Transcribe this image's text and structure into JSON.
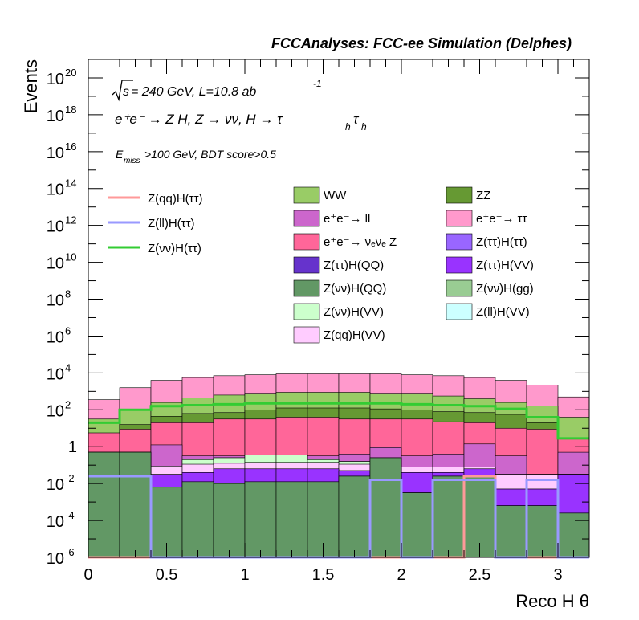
{
  "chart_data": {
    "type": "area",
    "title": "FCCAnalyses: FCC-ee Simulation (Delphes)",
    "xlabel": "Reco H θ",
    "ylabel": "Events",
    "xlim": [
      0,
      3.2
    ],
    "ylim_log10": [
      -6,
      21
    ],
    "log_y": true,
    "grid": false,
    "x_ticks": [
      "0",
      "0.5",
      "1",
      "1.5",
      "2",
      "2.5",
      "3"
    ],
    "y_ticks": [
      {
        "base": "10",
        "exp": "-6"
      },
      {
        "base": "10",
        "exp": "-4"
      },
      {
        "base": "10",
        "exp": "-2"
      },
      {
        "base": "1",
        "exp": ""
      },
      {
        "base": "10",
        "exp": "2"
      },
      {
        "base": "10",
        "exp": "4"
      },
      {
        "base": "10",
        "exp": "6"
      },
      {
        "base": "10",
        "exp": "8"
      },
      {
        "base": "10",
        "exp": "10"
      },
      {
        "base": "10",
        "exp": "12"
      },
      {
        "base": "10",
        "exp": "14"
      },
      {
        "base": "10",
        "exp": "16"
      },
      {
        "base": "10",
        "exp": "18"
      },
      {
        "base": "10",
        "exp": "20"
      }
    ],
    "annotations": {
      "sqrt_s": "s",
      "energy_lumi": " = 240 GeV, L=10.8 ab",
      "lumi_exp": "-1",
      "process": "e⁺e⁻ → Z H, Z → νν, H → τ",
      "process_sub1": "h",
      "process_tau2": "τ",
      "process_sub2": "h",
      "cut_E": "E",
      "cut_sub": "miss",
      "cut_rest": ">100 GeV, BDT score>0.5"
    },
    "bin_edges": [
      0,
      0.2,
      0.4,
      0.6,
      0.8,
      1.0,
      1.2,
      1.4,
      1.6,
      1.8,
      2.0,
      2.2,
      2.4,
      2.6,
      2.8,
      3.0,
      3.2
    ],
    "stack_log10_tops": [
      {
        "name": "Z(νν)H(QQ)",
        "color": "#629865",
        "values": [
          -0.3,
          -0.3,
          -2.2,
          -1.9,
          -2.0,
          -1.9,
          -1.9,
          -1.9,
          -1.6,
          -0.6,
          -2.5,
          -1.6,
          -1.6,
          -3.2,
          -3.2,
          -3.6
        ]
      },
      {
        "name": "Z(νν)H(gg)",
        "color": "#99cc93",
        "values": [
          -0.3,
          -0.3,
          -2.2,
          -1.9,
          -2.0,
          -1.9,
          -1.9,
          -1.9,
          -1.6,
          -0.6,
          -2.5,
          -1.6,
          -1.6,
          -3.2,
          -3.2,
          -3.6
        ]
      },
      {
        "name": "Z(ττ)H(QQ)",
        "color": "#6633cc",
        "values": [
          -0.3,
          -0.3,
          -2.2,
          -1.9,
          -2.0,
          -1.9,
          -1.9,
          -1.9,
          -1.6,
          -0.6,
          -2.5,
          -1.6,
          -1.6,
          -3.2,
          -3.2,
          -3.6
        ]
      },
      {
        "name": "Z(ττ)H(VV)",
        "color": "#9933ff",
        "values": [
          -1.5,
          -1.5,
          -1.5,
          -1.4,
          -1.2,
          -1.2,
          -1.2,
          -1.2,
          -1.3,
          -1.2,
          -1.4,
          -1.4,
          -1.2,
          -2.3,
          -2.3,
          -1.5
        ]
      },
      {
        "name": "Z(ττ)H(ττ)",
        "color": "#9966ff",
        "values": [
          -1.5,
          -1.5,
          -1.5,
          -1.4,
          -1.2,
          -1.2,
          -1.2,
          -1.2,
          -1.3,
          -1.2,
          -1.4,
          -1.4,
          -1.2,
          -2.3,
          -2.3,
          -1.5
        ]
      },
      {
        "name": "Z(qq)H(VV)",
        "color": "#ffccff",
        "values": [
          -1.5,
          -1.5,
          -1.05,
          -0.95,
          -0.9,
          -0.85,
          -0.85,
          -0.85,
          -0.95,
          -1.05,
          -1.1,
          -1.1,
          -1.1,
          -1.5,
          -1.5,
          -1.5
        ]
      },
      {
        "name": "Z(νν)H(VV)",
        "color": "#ccffcc",
        "values": [
          -1.5,
          -1.5,
          -1.05,
          -0.7,
          -0.6,
          -0.45,
          -0.45,
          -0.7,
          -0.8,
          -0.9,
          -1.1,
          -1.1,
          -1.1,
          -1.5,
          -1.5,
          -1.5
        ]
      },
      {
        "name": "Z(ll)H(VV)",
        "color": "#ccffff",
        "values": [
          -1.5,
          -1.5,
          -1.05,
          -0.7,
          -0.6,
          -0.45,
          -0.45,
          -0.7,
          -0.8,
          -0.9,
          -1.1,
          -1.1,
          -1.1,
          -1.5,
          -1.5,
          -1.5
        ]
      },
      {
        "name": "e⁺e⁻→ ll",
        "color": "#cc66cc",
        "values": [
          -0.3,
          -0.3,
          0.1,
          -0.5,
          -0.5,
          -0.5,
          -0.5,
          -0.5,
          -0.4,
          -0.05,
          -0.5,
          -0.4,
          0.15,
          -0.5,
          -1.5,
          -0.3
        ]
      },
      {
        "name": "e⁺e⁻→ νₑνₑ Z",
        "color": "#ff6699",
        "values": [
          0.75,
          0.95,
          1.3,
          1.3,
          1.5,
          1.5,
          1.6,
          1.6,
          1.5,
          1.5,
          1.5,
          1.35,
          1.3,
          1.0,
          0.95,
          0.45
        ]
      },
      {
        "name": "ZZ",
        "color": "#669933",
        "values": [
          0.55,
          1.2,
          1.65,
          1.8,
          1.85,
          2.0,
          2.1,
          2.1,
          2.1,
          2.05,
          2.0,
          1.9,
          1.85,
          1.75,
          1.3,
          0.45
        ]
      },
      {
        "name": "WW",
        "color": "#99cc66",
        "values": [
          1.5,
          2.0,
          2.4,
          2.65,
          2.8,
          2.9,
          2.95,
          2.95,
          2.95,
          2.9,
          2.9,
          2.75,
          2.6,
          2.4,
          2.2,
          1.6
        ]
      },
      {
        "name": "e⁺e⁻→ ττ",
        "color": "#ff99cc",
        "values": [
          2.55,
          3.2,
          3.6,
          3.75,
          3.85,
          3.9,
          3.95,
          3.95,
          3.95,
          3.95,
          3.9,
          3.85,
          3.75,
          3.6,
          3.35,
          2.7
        ]
      }
    ],
    "signal_log10": [
      {
        "name": "Z(qq)H(ττ)",
        "color": "#ff9999",
        "values": [
          -6,
          -6,
          -6,
          -6,
          -6,
          -6,
          -6,
          -6,
          -6,
          -6,
          -6,
          -6,
          -1.6,
          -6,
          -6,
          -6
        ]
      },
      {
        "name": "Z(ll)H(ττ)",
        "color": "#9999ff",
        "values": [
          -1.6,
          -1.6,
          -6,
          -6,
          -6,
          -6,
          -6,
          -6,
          -6,
          -1.8,
          -6,
          -1.8,
          -1.8,
          -6,
          -1.8,
          -6
        ]
      },
      {
        "name": "Z(νν)H(ττ)",
        "color": "#33cc33",
        "values": [
          1.3,
          2.0,
          2.2,
          2.25,
          2.3,
          2.35,
          2.35,
          2.35,
          2.35,
          2.35,
          2.3,
          2.25,
          2.2,
          2.05,
          1.6,
          0.45
        ]
      }
    ],
    "legend_signal": [
      {
        "name": "Z(qq)H(ττ)",
        "color": "#ff9999"
      },
      {
        "name": "Z(ll)H(ττ)",
        "color": "#9999ff"
      },
      {
        "name": "Z(νν)H(ττ)",
        "color": "#33cc33"
      }
    ],
    "legend_background": [
      {
        "name": "WW",
        "color": "#99cc66"
      },
      {
        "name": "ZZ",
        "color": "#669933"
      },
      {
        "name": "e⁺e⁻→ ll",
        "color": "#cc66cc"
      },
      {
        "name": "e⁺e⁻→ ττ",
        "color": "#ff99cc"
      },
      {
        "name": "e⁺e⁻→ νₑνₑ Z",
        "color": "#ff6699"
      },
      {
        "name": "Z(ττ)H(ττ)",
        "color": "#9966ff"
      },
      {
        "name": "Z(ττ)H(QQ)",
        "color": "#6633cc"
      },
      {
        "name": "Z(ττ)H(VV)",
        "color": "#9933ff"
      },
      {
        "name": "Z(νν)H(QQ)",
        "color": "#629865"
      },
      {
        "name": "Z(νν)H(gg)",
        "color": "#99cc93"
      },
      {
        "name": "Z(νν)H(VV)",
        "color": "#ccffcc"
      },
      {
        "name": "Z(ll)H(VV)",
        "color": "#ccffff"
      },
      {
        "name": "Z(qq)H(VV)",
        "color": "#ffccff"
      }
    ]
  }
}
